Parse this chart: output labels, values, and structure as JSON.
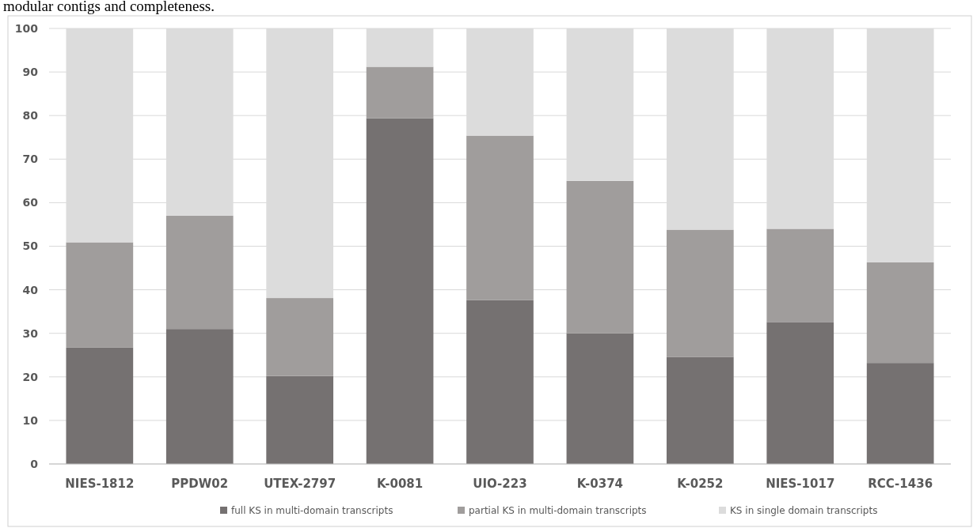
{
  "chart_data": {
    "type": "bar",
    "stacked": true,
    "annotations": [
      "modular contigs and completeness."
    ],
    "categories": [
      "NIES-1812",
      "PPDW02",
      "UTEX-2797",
      "K-0081",
      "UIO-223",
      "K-0374",
      "K-0252",
      "NIES-1017",
      "RCC-1436"
    ],
    "series": [
      {
        "name": "full KS in multi-domain transcripts",
        "color": "#757171",
        "values": [
          26.7,
          31,
          20.2,
          79.4,
          37.6,
          30,
          24.6,
          32.6,
          23.2
        ]
      },
      {
        "name": "partial KS in multi-domain transcripts",
        "color": "#a09d9c",
        "values": [
          24.2,
          26,
          17.9,
          11.8,
          37.8,
          35,
          29.2,
          21.4,
          23.1
        ]
      },
      {
        "name": "KS in single domain transcripts",
        "color": "#dcdcdc",
        "values": [
          49.1,
          43,
          61.9,
          8.8,
          24.6,
          35,
          46.2,
          46,
          53.7
        ]
      }
    ],
    "ylim": [
      0,
      100
    ],
    "yticks": [
      0,
      10,
      20,
      30,
      40,
      50,
      60,
      70,
      80,
      90,
      100
    ],
    "grid": "y",
    "legend": "bottom"
  }
}
